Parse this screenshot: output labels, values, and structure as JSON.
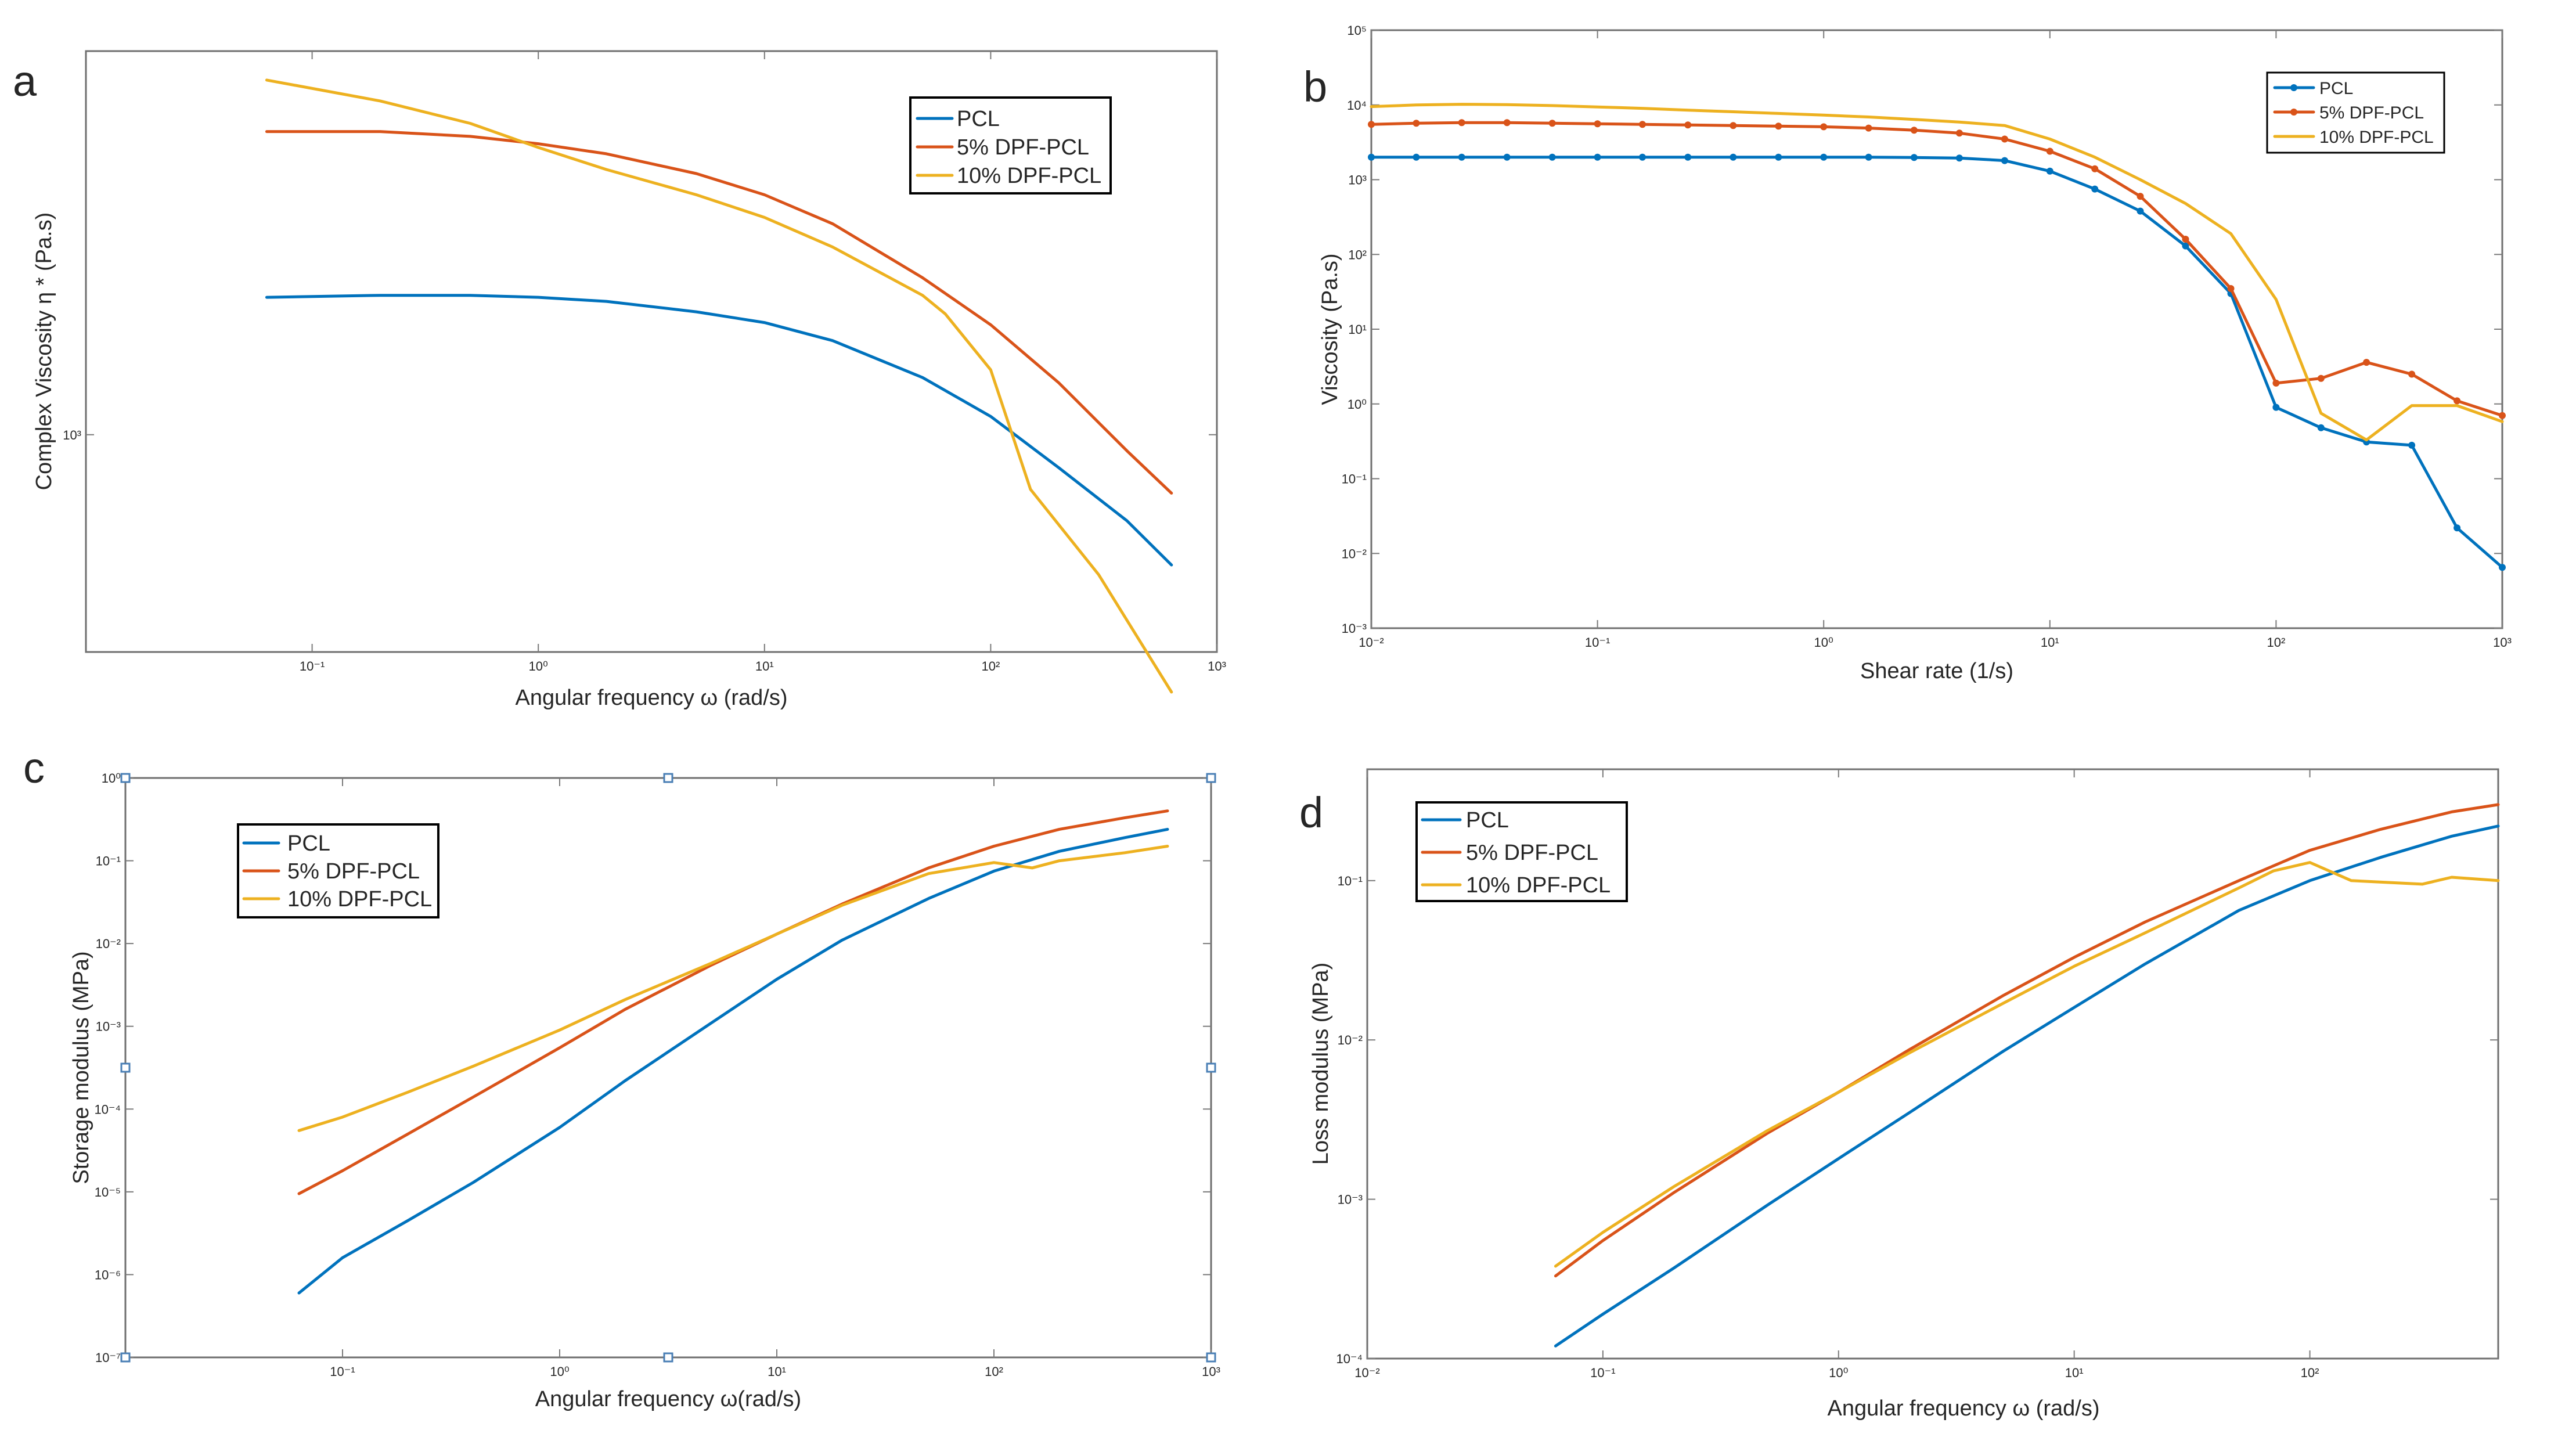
{
  "colors": {
    "PCL": "#0072BD",
    "5% DPF-PCL": "#D95319",
    "10% DPF-PCL": "#EDB120"
  },
  "chart_data": [
    {
      "panel": "a",
      "type": "line",
      "xlabel": "Angular frequency ω (rad/s)",
      "ylabel": "Complex Viscosity η * (Pa.s)",
      "xscale": "log",
      "yscale": "log",
      "xlim": [
        0.01,
        1000
      ],
      "ylim": [
        500,
        3400
      ],
      "xticks": [
        {
          "v": 0.1,
          "label": "10⁻¹"
        },
        {
          "v": 1,
          "label": "10⁰"
        },
        {
          "v": 10,
          "label": "10¹"
        },
        {
          "v": 100,
          "label": "10²"
        },
        {
          "v": 1000,
          "label": "10³"
        }
      ],
      "yticks": [
        {
          "v": 1000,
          "label": "10³"
        }
      ],
      "legend": {
        "position": "top-right"
      },
      "series": [
        {
          "name": "PCL",
          "markers": false,
          "x": [
            0.063,
            0.2,
            0.5,
            1,
            2,
            5,
            10,
            20,
            50,
            100,
            200,
            400,
            630
          ],
          "y": [
            1550,
            1560,
            1560,
            1550,
            1530,
            1480,
            1430,
            1350,
            1200,
            1060,
            900,
            760,
            660
          ]
        },
        {
          "name": "5% DPF-PCL",
          "markers": false,
          "x": [
            0.063,
            0.2,
            0.5,
            1,
            2,
            5,
            10,
            20,
            50,
            100,
            200,
            400,
            630
          ],
          "y": [
            2630,
            2630,
            2590,
            2530,
            2450,
            2300,
            2150,
            1960,
            1650,
            1420,
            1180,
            950,
            830
          ]
        },
        {
          "name": "10% DPF-PCL",
          "markers": false,
          "x": [
            0.063,
            0.2,
            0.5,
            1,
            2,
            5,
            10,
            20,
            50,
            63,
            100,
            150,
            300,
            630
          ],
          "y": [
            3100,
            2900,
            2700,
            2500,
            2330,
            2150,
            2000,
            1820,
            1560,
            1470,
            1230,
            840,
            640,
            440
          ]
        }
      ]
    },
    {
      "panel": "b",
      "type": "line",
      "xlabel": "Shear rate (1/s)",
      "ylabel": "Viscosity (Pa.s)",
      "xscale": "log",
      "yscale": "log",
      "xlim": [
        0.01,
        1000
      ],
      "ylim": [
        0.001,
        100000
      ],
      "xticks": [
        {
          "v": 0.01,
          "label": "10⁻²"
        },
        {
          "v": 0.1,
          "label": "10⁻¹"
        },
        {
          "v": 1,
          "label": "10⁰"
        },
        {
          "v": 10,
          "label": "10¹"
        },
        {
          "v": 100,
          "label": "10²"
        },
        {
          "v": 1000,
          "label": "10³"
        }
      ],
      "yticks": [
        {
          "v": 0.001,
          "label": "10⁻³"
        },
        {
          "v": 0.01,
          "label": "10⁻²"
        },
        {
          "v": 0.1,
          "label": "10⁻¹"
        },
        {
          "v": 1,
          "label": "10⁰"
        },
        {
          "v": 10,
          "label": "10¹"
        },
        {
          "v": 100,
          "label": "10²"
        },
        {
          "v": 1000,
          "label": "10³"
        },
        {
          "v": 10000,
          "label": "10⁴"
        },
        {
          "v": 100000,
          "label": "10⁵"
        }
      ],
      "legend": {
        "position": "top-right"
      },
      "series": [
        {
          "name": "PCL",
          "markers": true,
          "x": [
            0.01,
            0.0158,
            0.0251,
            0.0398,
            0.0631,
            0.1,
            0.158,
            0.251,
            0.398,
            0.631,
            1,
            1.58,
            2.51,
            3.98,
            6.31,
            10,
            15.8,
            25.1,
            39.8,
            63.1,
            100,
            158,
            251,
            398,
            631,
            1000
          ],
          "y": [
            2000,
            2000,
            2000,
            2000,
            2000,
            2000,
            2000,
            2000,
            2000,
            2000,
            2000,
            2000,
            1980,
            1950,
            1800,
            1300,
            750,
            380,
            130,
            30,
            0.9,
            0.48,
            0.31,
            0.28,
            0.022,
            0.0065
          ]
        },
        {
          "name": "5% DPF-PCL",
          "markers": true,
          "x": [
            0.01,
            0.0158,
            0.0251,
            0.0398,
            0.0631,
            0.1,
            0.158,
            0.251,
            0.398,
            0.631,
            1,
            1.58,
            2.51,
            3.98,
            6.31,
            10,
            15.8,
            25.1,
            39.8,
            63.1,
            100,
            158,
            251,
            398,
            631,
            1000
          ],
          "y": [
            5500,
            5700,
            5800,
            5800,
            5700,
            5600,
            5500,
            5400,
            5300,
            5200,
            5100,
            4900,
            4600,
            4200,
            3500,
            2400,
            1400,
            600,
            160,
            35,
            1.9,
            2.2,
            3.6,
            2.5,
            1.1,
            0.7
          ]
        },
        {
          "name": "10% DPF-PCL",
          "markers": false,
          "x": [
            0.01,
            0.0158,
            0.0251,
            0.0398,
            0.0631,
            0.1,
            0.158,
            0.251,
            0.398,
            0.631,
            1,
            1.58,
            2.51,
            3.98,
            6.31,
            10,
            15.8,
            25.1,
            39.8,
            63.1,
            100,
            158,
            251,
            398,
            631,
            1000
          ],
          "y": [
            9500,
            10000,
            10200,
            10100,
            9800,
            9400,
            9000,
            8500,
            8100,
            7700,
            7300,
            6900,
            6400,
            5900,
            5300,
            3500,
            2000,
            1000,
            480,
            190,
            25,
            0.75,
            0.33,
            0.95,
            0.95,
            0.58
          ]
        }
      ]
    },
    {
      "panel": "c",
      "type": "line",
      "xlabel": "Angular frequency ω(rad/s)",
      "ylabel": "Storage modulus (MPa)",
      "xscale": "log",
      "yscale": "log",
      "xlim": [
        0.01,
        1000
      ],
      "ylim": [
        1e-07,
        1
      ],
      "xticks": [
        {
          "v": 0.1,
          "label": "10⁻¹"
        },
        {
          "v": 1,
          "label": "10⁰"
        },
        {
          "v": 10,
          "label": "10¹"
        },
        {
          "v": 100,
          "label": "10²"
        },
        {
          "v": 1000,
          "label": "10³"
        }
      ],
      "yticks": [
        {
          "v": 1e-07,
          "label": "10⁻⁷"
        },
        {
          "v": 1e-06,
          "label": "10⁻⁶"
        },
        {
          "v": 1e-05,
          "label": "10⁻⁵"
        },
        {
          "v": 0.0001,
          "label": "10⁻⁴"
        },
        {
          "v": 0.001,
          "label": "10⁻³"
        },
        {
          "v": 0.01,
          "label": "10⁻²"
        },
        {
          "v": 0.1,
          "label": "10⁻¹"
        },
        {
          "v": 1,
          "label": "10⁰"
        }
      ],
      "legend": {
        "position": "top-left"
      },
      "series": [
        {
          "name": "PCL",
          "markers": false,
          "x": [
            0.063,
            0.1,
            0.2,
            0.4,
            1,
            2,
            5,
            10,
            20,
            50,
            100,
            200,
            400,
            630
          ],
          "y": [
            6e-07,
            1.6e-06,
            4.5e-06,
            1.3e-05,
            6e-05,
            0.00022,
            0.0011,
            0.0037,
            0.011,
            0.035,
            0.075,
            0.13,
            0.19,
            0.24
          ]
        },
        {
          "name": "5% DPF-PCL",
          "markers": false,
          "x": [
            0.063,
            0.1,
            0.2,
            0.4,
            1,
            2,
            5,
            10,
            20,
            50,
            100,
            200,
            400,
            630
          ],
          "y": [
            9.5e-06,
            1.8e-05,
            5e-05,
            0.00014,
            0.00055,
            0.0016,
            0.0055,
            0.013,
            0.03,
            0.082,
            0.15,
            0.24,
            0.33,
            0.4
          ]
        },
        {
          "name": "10% DPF-PCL",
          "markers": false,
          "x": [
            0.063,
            0.1,
            0.2,
            0.4,
            1,
            2,
            5,
            10,
            20,
            50,
            100,
            150,
            200,
            400,
            630
          ],
          "y": [
            5.5e-05,
            8e-05,
            0.00016,
            0.00033,
            0.0009,
            0.0021,
            0.0058,
            0.013,
            0.029,
            0.07,
            0.095,
            0.082,
            0.1,
            0.125,
            0.15
          ]
        }
      ]
    },
    {
      "panel": "d",
      "type": "line",
      "xlabel": "Angular frequency ω (rad/s)",
      "ylabel": "Loss modulus (MPa)",
      "xscale": "log",
      "yscale": "log",
      "xlim": [
        0.01,
        630
      ],
      "ylim": [
        0.0001,
        0.5
      ],
      "xticks": [
        {
          "v": 0.01,
          "label": "10⁻²"
        },
        {
          "v": 0.1,
          "label": "10⁻¹"
        },
        {
          "v": 1,
          "label": "10⁰"
        },
        {
          "v": 10,
          "label": "10¹"
        },
        {
          "v": 100,
          "label": "10²"
        }
      ],
      "yticks": [
        {
          "v": 0.0001,
          "label": "10⁻⁴"
        },
        {
          "v": 0.001,
          "label": "10⁻³"
        },
        {
          "v": 0.01,
          "label": "10⁻²"
        },
        {
          "v": 0.1,
          "label": "10⁻¹"
        }
      ],
      "legend": {
        "position": "top-left"
      },
      "series": [
        {
          "name": "PCL",
          "markers": false,
          "x": [
            0.063,
            0.1,
            0.2,
            0.5,
            1,
            2,
            5,
            10,
            20,
            50,
            100,
            200,
            400,
            630
          ],
          "y": [
            0.00012,
            0.00019,
            0.00037,
            0.00092,
            0.0018,
            0.0035,
            0.0085,
            0.016,
            0.03,
            0.065,
            0.1,
            0.14,
            0.19,
            0.22
          ]
        },
        {
          "name": "5% DPF-PCL",
          "markers": false,
          "x": [
            0.063,
            0.1,
            0.2,
            0.5,
            1,
            2,
            5,
            10,
            20,
            50,
            100,
            200,
            400,
            630
          ],
          "y": [
            0.00033,
            0.00055,
            0.0011,
            0.0026,
            0.0047,
            0.0087,
            0.019,
            0.033,
            0.055,
            0.1,
            0.155,
            0.21,
            0.27,
            0.3
          ]
        },
        {
          "name": "10% DPF-PCL",
          "markers": false,
          "x": [
            0.063,
            0.1,
            0.2,
            0.5,
            1,
            2,
            5,
            10,
            20,
            50,
            70,
            100,
            150,
            300,
            400,
            630
          ],
          "y": [
            0.00038,
            0.00062,
            0.0012,
            0.0027,
            0.0047,
            0.0083,
            0.017,
            0.029,
            0.047,
            0.09,
            0.115,
            0.13,
            0.1,
            0.095,
            0.105,
            0.1
          ]
        }
      ]
    }
  ]
}
